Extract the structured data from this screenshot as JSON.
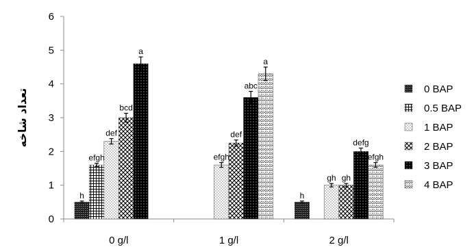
{
  "chart_data": {
    "type": "bar",
    "ylabel": "تعداد شاخه",
    "ylim": [
      0,
      6
    ],
    "yticks": [
      "0",
      "1",
      "2",
      "3",
      "4",
      "5",
      "6"
    ],
    "categories": [
      "0 g/l",
      "1 g/l",
      "2 g/l"
    ],
    "grid": false,
    "legend_position": "right",
    "error_bars": true,
    "series": [
      {
        "name": "0 BAP",
        "pattern": "dense-dots",
        "values": [
          0.5,
          null,
          0.5
        ],
        "errors": [
          0.03,
          null,
          0.03
        ],
        "letters": [
          "h",
          "",
          "h"
        ]
      },
      {
        "name": "0.5 BAP",
        "pattern": "grid",
        "values": [
          1.6,
          null,
          null
        ],
        "errors": [
          0.05,
          null,
          null
        ],
        "letters": [
          "efgh",
          "",
          ""
        ]
      },
      {
        "name": "1 BAP",
        "pattern": "light-dots",
        "values": [
          2.3,
          1.6,
          1.0
        ],
        "errors": [
          0.08,
          0.07,
          0.05
        ],
        "letters": [
          "def",
          "efgh",
          "gh"
        ]
      },
      {
        "name": "2 BAP",
        "pattern": "diagonal-cross",
        "values": [
          3.0,
          2.25,
          1.0
        ],
        "errors": [
          0.13,
          0.09,
          0.05
        ],
        "letters": [
          "bcd",
          "def",
          "gh"
        ]
      },
      {
        "name": "3 BAP",
        "pattern": "black-dots",
        "values": [
          4.6,
          3.6,
          2.0
        ],
        "errors": [
          0.2,
          0.18,
          0.1
        ],
        "letters": [
          "a",
          "abc",
          "defg"
        ]
      },
      {
        "name": "4 BAP",
        "pattern": "zigzag",
        "values": [
          null,
          4.3,
          1.6
        ],
        "errors": [
          null,
          0.2,
          0.07
        ],
        "letters": [
          "",
          "a",
          "efgh"
        ]
      }
    ]
  }
}
